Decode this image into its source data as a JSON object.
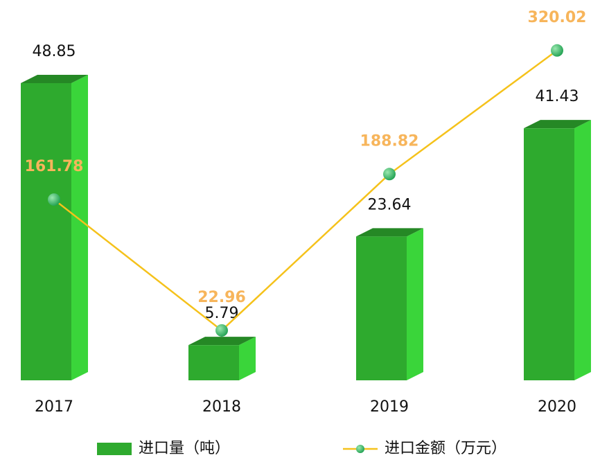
{
  "chart_data": {
    "type": "bar-line",
    "categories": [
      "2017",
      "2018",
      "2019",
      "2020"
    ],
    "series": [
      {
        "name": "进口量（吨）",
        "type": "bar",
        "color": "#2eaa2e",
        "values": [
          48.85,
          5.79,
          23.64,
          41.43
        ]
      },
      {
        "name": "进口金额（万元）",
        "type": "line",
        "axis": "y2",
        "color": "#f5c21b",
        "label_color": "#f7b55b",
        "values": [
          161.78,
          22.96,
          188.82,
          320.02
        ]
      }
    ],
    "ylim": [
      0,
      55
    ],
    "y2lim": [
      -30,
      325
    ]
  }
}
